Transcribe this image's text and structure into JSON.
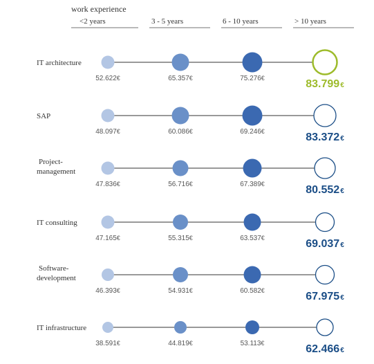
{
  "chart_data": {
    "type": "scatter",
    "title": "work experience",
    "categories": [
      "<2 years",
      "3 - 5 years",
      "6 - 10 years",
      "> 10 years"
    ],
    "rows": [
      {
        "label": "IT architecture",
        "values": [
          "52.622 €",
          "65.357 €",
          "75.276 €",
          "83.799 €"
        ],
        "amounts": [
          52622,
          65357,
          75276,
          83799
        ],
        "highlight": true
      },
      {
        "label": "SAP",
        "values": [
          "48.097 €",
          "60.086 €",
          "69.246 €",
          "83.372 €"
        ],
        "amounts": [
          48097,
          60086,
          69246,
          83372
        ],
        "highlight": false
      },
      {
        "label": "Project-\nmanagement",
        "values": [
          "47.836 €",
          "56.716 €",
          "67.389 €",
          "80.552 €"
        ],
        "amounts": [
          47836,
          56716,
          67389,
          80552
        ],
        "highlight": false
      },
      {
        "label": "IT consulting",
        "values": [
          "47.165 €",
          "55.315 €",
          "63.537 €",
          "69.037 €"
        ],
        "amounts": [
          47165,
          55315,
          63537,
          69037
        ],
        "highlight": false
      },
      {
        "label": "Software-\ndevelopment",
        "values": [
          "46.393 €",
          "54.931 €",
          "60.582 €",
          "67.975 €"
        ],
        "amounts": [
          46393,
          54931,
          60582,
          67975
        ],
        "highlight": false
      },
      {
        "label": "IT infrastructure",
        "values": [
          "38.591 €",
          "44.819 €",
          "53.113 €",
          "62.466 €"
        ],
        "amounts": [
          38591,
          44819,
          53113,
          62466
        ],
        "highlight": false
      }
    ],
    "colors": {
      "level1": "#b3c6e4",
      "level2": "#6a90c8",
      "level3": "#3b69b1",
      "outline_blue": "#1a4d86",
      "highlight": "#9dbb2a",
      "value_dark": "#1a4d86",
      "text_grey": "#555555",
      "line": "#333333"
    }
  }
}
